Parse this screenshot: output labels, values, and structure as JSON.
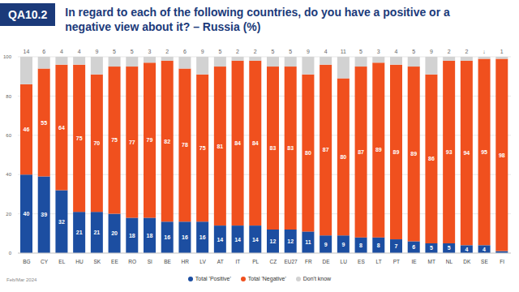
{
  "chart_data": {
    "type": "bar",
    "question_id": "QA10.2",
    "title": "In regard to each of the following countries, do you have a positive or a negative view about it? – Russia (%)",
    "source": "Feb/Mar 2024",
    "categories": [
      "BG",
      "CY",
      "EL",
      "HU",
      "SK",
      "EE",
      "RO",
      "SI",
      "BE",
      "HR",
      "LV",
      "AT",
      "IT",
      "PL",
      "CZ",
      "EU27",
      "FR",
      "DE",
      "LU",
      "ES",
      "LT",
      "PT",
      "IE",
      "MT",
      "NL",
      "DK",
      "SE",
      "FI"
    ],
    "series": [
      {
        "name": "Total 'Positive'",
        "color": "#1c4ea1",
        "values": [
          40,
          39,
          32,
          21,
          21,
          20,
          18,
          18,
          16,
          16,
          16,
          14,
          14,
          14,
          12,
          12,
          11,
          9,
          9,
          8,
          8,
          7,
          6,
          5,
          5,
          4,
          4,
          1
        ],
        "value_labels": [
          "40",
          "39",
          "32",
          "21",
          "21",
          "20",
          "18",
          "18",
          "16",
          "16",
          "16",
          "14",
          "14",
          "14",
          "12",
          "12",
          "11",
          "9",
          "9",
          "8",
          "8",
          "7",
          "6",
          "5",
          "5",
          "4",
          "4",
          null
        ]
      },
      {
        "name": "Total 'Negative'",
        "color": "#f0501e",
        "values": [
          46,
          55,
          64,
          75,
          70,
          75,
          77,
          79,
          82,
          78,
          75,
          81,
          84,
          84,
          83,
          83,
          80,
          87,
          80,
          87,
          89,
          89,
          89,
          86,
          93,
          94,
          95,
          98
        ]
      },
      {
        "name": "Don't know",
        "color": "#d2d2d2",
        "values": [
          14,
          6,
          4,
          4,
          9,
          5,
          5,
          3,
          2,
          6,
          9,
          5,
          2,
          2,
          5,
          5,
          9,
          4,
          11,
          5,
          3,
          4,
          5,
          9,
          2,
          2,
          1,
          1
        ],
        "value_labels": [
          "14",
          "6",
          "4",
          "4",
          "9",
          "5",
          "5",
          "3",
          "2",
          "6",
          "9",
          "5",
          "2",
          "2",
          "5",
          "5",
          "9",
          "4",
          "11",
          "5",
          "3",
          "4",
          "5",
          "9",
          "2",
          "2",
          "↓",
          "1"
        ]
      }
    ],
    "stacked": true,
    "data_labels": true,
    "ylim": [
      0,
      100
    ],
    "yticks": [
      0,
      20,
      40,
      60,
      80,
      100
    ],
    "grid": true,
    "legend": "bottom"
  }
}
